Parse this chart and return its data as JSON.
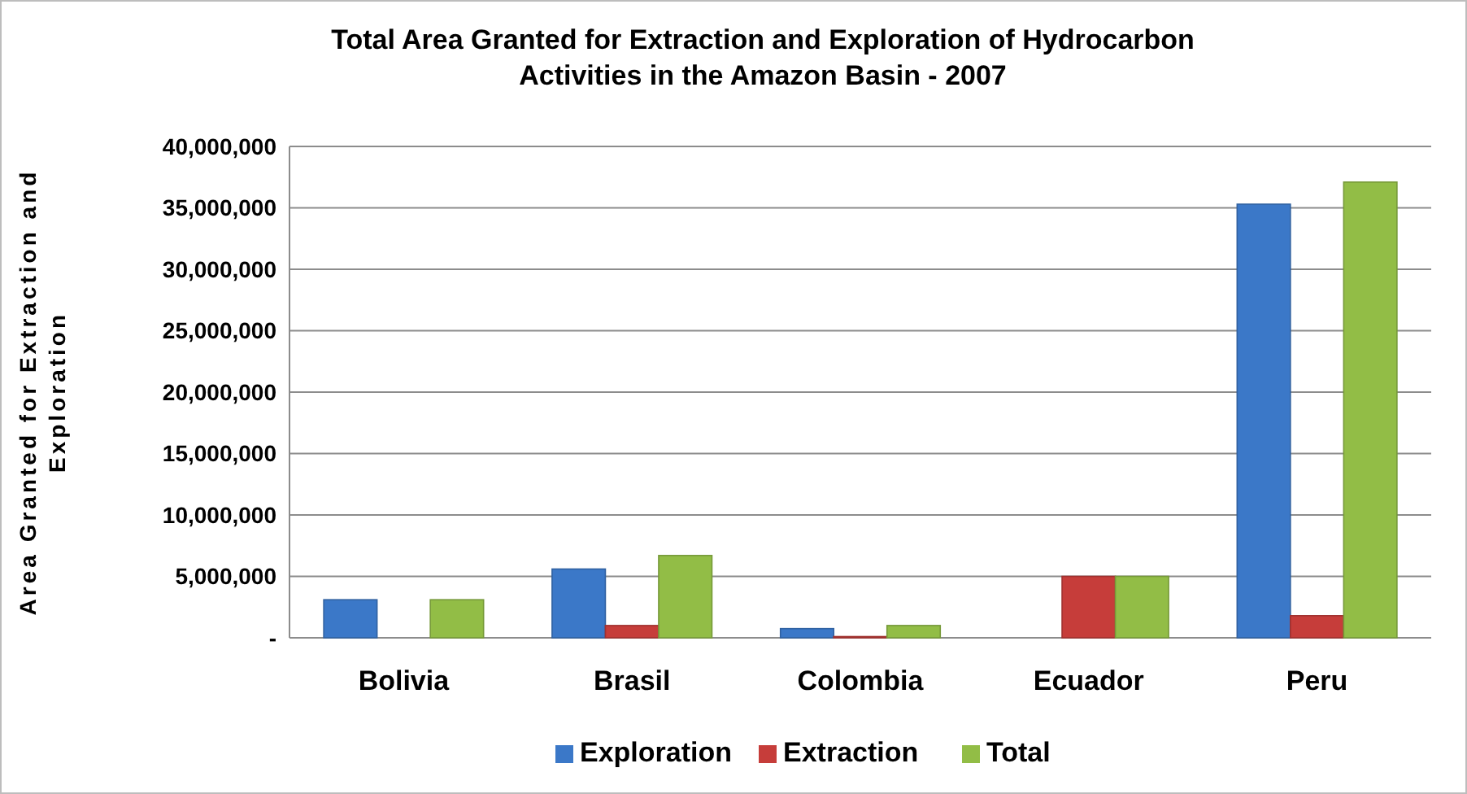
{
  "chart_data": {
    "type": "bar",
    "title": "Total Area Granted for Extraction and Exploration of Hydrocarbon Activities in the Amazon Basin - 2007",
    "ylabel": "Area Granted for Extraction and Exploration",
    "categories": [
      "Bolivia",
      "Brasil",
      "Colombia",
      "Ecuador",
      "Peru"
    ],
    "series": [
      {
        "name": "Exploration",
        "color": "#3b78c8",
        "values": [
          3100000,
          5600000,
          750000,
          null,
          35300000
        ]
      },
      {
        "name": "Extraction",
        "color": "#c63d3a",
        "values": [
          null,
          1000000,
          100000,
          5000000,
          1800000
        ]
      },
      {
        "name": "Total",
        "color": "#92bd46",
        "values": [
          3100000,
          6700000,
          1000000,
          5000000,
          37100000
        ]
      }
    ],
    "ylim": [
      0,
      40000000
    ],
    "yticks": [
      {
        "value": 0,
        "label": "-"
      },
      {
        "value": 5000000,
        "label": "5,000,000"
      },
      {
        "value": 10000000,
        "label": "10,000,000"
      },
      {
        "value": 15000000,
        "label": "15,000,000"
      },
      {
        "value": 20000000,
        "label": "20,000,000"
      },
      {
        "value": 25000000,
        "label": "25,000,000"
      },
      {
        "value": 30000000,
        "label": "30,000,000"
      },
      {
        "value": 35000000,
        "label": "35,000,000"
      },
      {
        "value": 40000000,
        "label": "40,000,000"
      }
    ],
    "grid": "y",
    "legend": "bottom"
  }
}
